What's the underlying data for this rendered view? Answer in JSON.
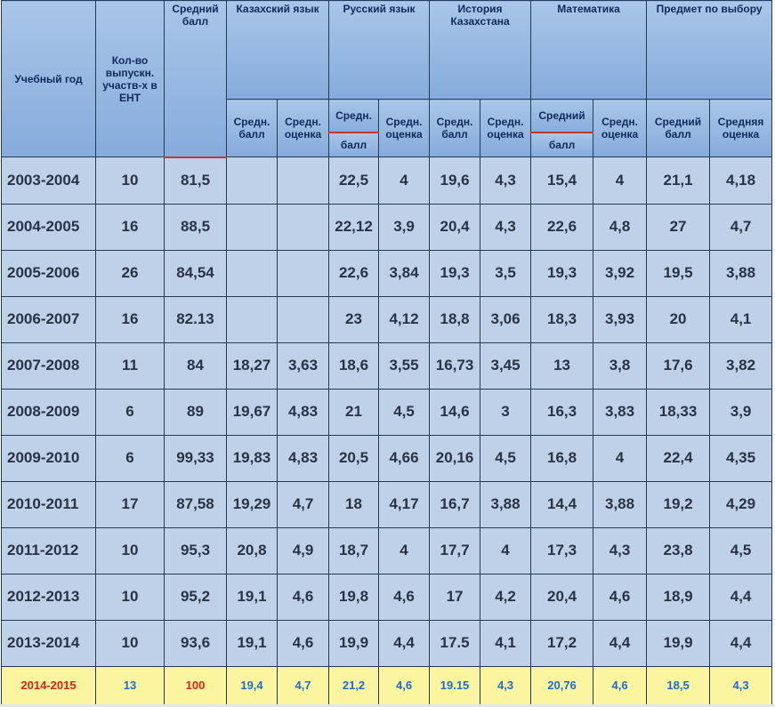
{
  "headers": {
    "year": "Учебный год",
    "participants": "Кол-во выпускн. участв-х в ЕНТ",
    "avg_score": "Средний балл",
    "kazakh": "Казахский язык",
    "russian": "Русский язык",
    "history": "История Казахстана",
    "math": "Математика",
    "elective": "Предмет по выбору",
    "kaz_score": "Средн. балл",
    "kaz_grade": "Средн. оценка",
    "rus_score_top": "Средн.",
    "rus_score_bot": "балл",
    "rus_grade": "Средн. оценка",
    "hist_score": "Средн. балл",
    "hist_grade": "Средн. оценка",
    "math_score_top": "Средний",
    "math_score_bot": "балл",
    "math_grade": "Средн. оценка",
    "elec_score": "Средний балл",
    "elec_grade": "Средняя оценка"
  },
  "rows": [
    [
      "2003-2004",
      "10",
      "81,5",
      "",
      "",
      "22,5",
      "4",
      "19,6",
      "4,3",
      "15,4",
      "4",
      "21,1",
      "4,18"
    ],
    [
      "2004-2005",
      "16",
      "88,5",
      "",
      "",
      "22,12",
      "3,9",
      "20,4",
      "4,3",
      "22,6",
      "4,8",
      "27",
      "4,7"
    ],
    [
      "2005-2006",
      "26",
      "84,54",
      "",
      "",
      "22,6",
      "3,84",
      "19,3",
      "3,5",
      "19,3",
      "3,92",
      "19,5",
      "3,88"
    ],
    [
      "2006-2007",
      "16",
      "82.13",
      "",
      "",
      "23",
      "4,12",
      "18,8",
      "3,06",
      "18,3",
      "3,93",
      "20",
      "4,1"
    ],
    [
      "2007-2008",
      "11",
      "84",
      "18,27",
      "3,63",
      "18,6",
      "3,55",
      "16,73",
      "3,45",
      "13",
      "3,8",
      "17,6",
      "3,82"
    ],
    [
      "2008-2009",
      "6",
      "89",
      "19,67",
      "4,83",
      "21",
      "4,5",
      "14,6",
      "3",
      "16,3",
      "3,83",
      "18,33",
      "3,9"
    ],
    [
      "2009-2010",
      "6",
      "99,33",
      "19,83",
      "4,83",
      "20,5",
      "4,66",
      "20,16",
      "4,5",
      "16,8",
      "4",
      "22,4",
      "4,35"
    ],
    [
      "2010-2011",
      "17",
      "87,58",
      "19,29",
      "4,7",
      "18",
      "4,17",
      "16,7",
      "3,88",
      "14,4",
      "3,88",
      "19,2",
      "4,29"
    ],
    [
      "2011-2012",
      "10",
      "95,3",
      "20,8",
      "4,9",
      "18,7",
      "4",
      "17,7",
      "4",
      "17,3",
      "4,3",
      "23,8",
      "4,5"
    ],
    [
      "2012-2013",
      "10",
      "95,2",
      "19,1",
      "4,6",
      "19,8",
      "4,6",
      "17",
      "4,2",
      "20,4",
      "4,6",
      "18,9",
      "4,4"
    ],
    [
      "2013-2014",
      "10",
      "93,6",
      "19,1",
      "4,6",
      "19,9",
      "4,4",
      "17.5",
      "4,1",
      "17,2",
      "4,4",
      "19,9",
      "4,4"
    ]
  ],
  "highlight_row": [
    "2014-2015",
    "13",
    "100",
    "19,4",
    "4,7",
    "21,2",
    "4,6",
    "19.15",
    "4,3",
    "20,76",
    "4,6",
    "18,5",
    "4,3"
  ],
  "colors": {
    "header_bg": "#9bbbe3",
    "data_bg": "#bfd1e8",
    "highlight_bg": "#fbf5a0",
    "highlight_text": "#1b6dd1",
    "highlight_red": "#e0201a",
    "accent_line": "#c0392b"
  }
}
